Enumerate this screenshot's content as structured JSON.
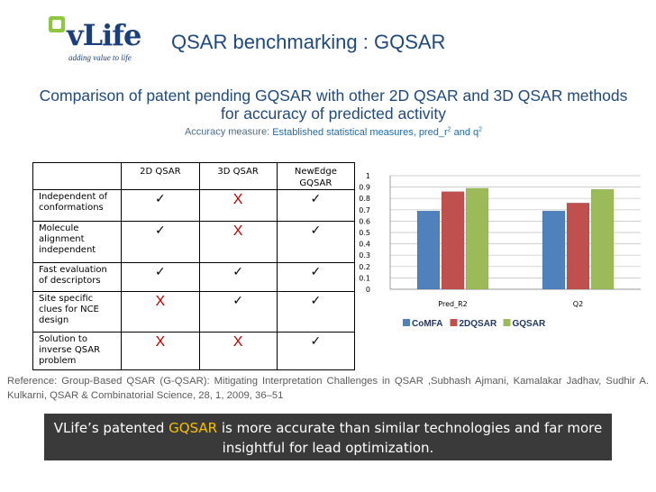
{
  "logo": {
    "text": "vLife",
    "tagline": "adding value to life",
    "icon": "vlife-square-icon"
  },
  "title": "QSAR benchmarking : GQSAR",
  "subtitle": "Comparison of patent pending GQSAR with other 2D QSAR and 3D QSAR methods for accuracy of predicted activity",
  "accuracy": {
    "prefix": "Accuracy measure:",
    "highlight": "Established statistical measures, pred_r",
    "sup1": "2",
    "and": " and q",
    "sup2": "2"
  },
  "table": {
    "headers": [
      "",
      "2D QSAR",
      "3D QSAR",
      "NewEdge GQSAR"
    ],
    "rows": [
      {
        "label": "Independent of conformations",
        "marks": [
          "✓",
          "X",
          "✓"
        ]
      },
      {
        "label": "Molecule alignment independent",
        "marks": [
          "✓",
          "X",
          "✓"
        ]
      },
      {
        "label": "Fast evaluation of descriptors",
        "marks": [
          "✓",
          "✓",
          "✓"
        ]
      },
      {
        "label": "Site specific clues for NCE design",
        "marks": [
          "X",
          "✓",
          "✓"
        ]
      },
      {
        "label": "Solution to inverse QSAR problem",
        "marks": [
          "X",
          "X",
          "✓"
        ]
      }
    ]
  },
  "chart_data": {
    "type": "bar",
    "categories": [
      "Pred_R2",
      "Q2"
    ],
    "series": [
      {
        "name": "CoMFA",
        "values": [
          0.69,
          0.69
        ],
        "color": "#4f81bd"
      },
      {
        "name": "2DQSAR",
        "values": [
          0.86,
          0.76
        ],
        "color": "#c0504d"
      },
      {
        "name": "GQSAR",
        "values": [
          0.89,
          0.88
        ],
        "color": "#9bbb59"
      }
    ],
    "yticks": [
      "0",
      "0.1",
      "0.2",
      "0.3",
      "0.4",
      "0.5",
      "0.6",
      "0.7",
      "0.8",
      "0.9",
      "1"
    ],
    "ylim": [
      0,
      1
    ],
    "grid": true,
    "legend": "bottom"
  },
  "reference": "Reference: Group-Based QSAR (G-QSAR): Mitigating Interpretation Challenges in QSAR ,Subhash Ajmani, Kamalakar Jadhav, Sudhir A. Kulkarni, QSAR & Combinatorial Science, 28, 1, 2009, 36–51",
  "banner": {
    "pre": "VLife’s patented ",
    "highlight": "GQSAR",
    "post": " is more accurate than similar technologies and far more insightful for lead optimization."
  }
}
